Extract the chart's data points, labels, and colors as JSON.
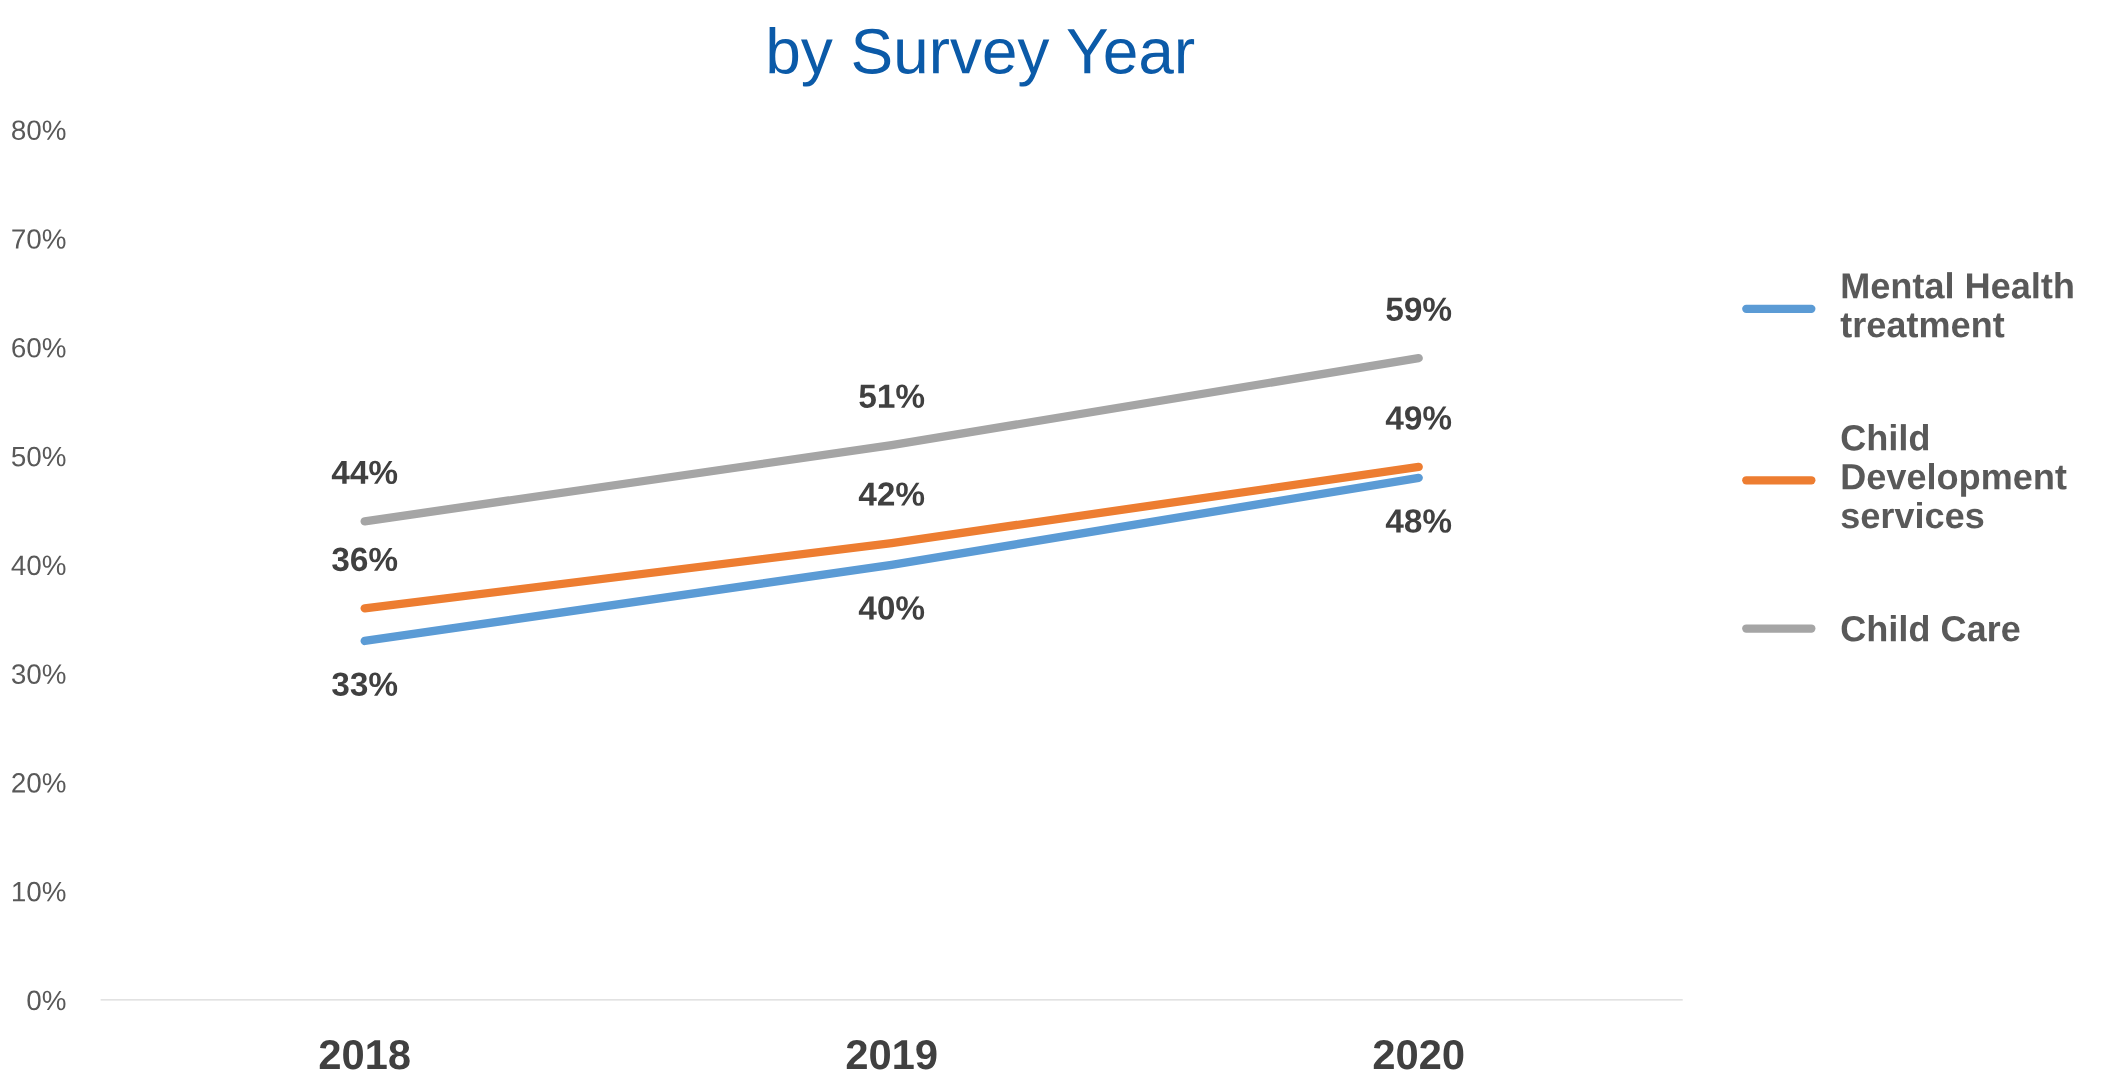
{
  "chart_data": {
    "type": "line",
    "title": "by Survey Year",
    "categories": [
      "2018",
      "2019",
      "2020"
    ],
    "series": [
      {
        "name": "Mental Health\ntreatment",
        "color": "#5b9bd5",
        "values": [
          33,
          40,
          48
        ],
        "value_labels": [
          "33%",
          "40%",
          "48%"
        ]
      },
      {
        "name": "Child\nDevelopment\nservices",
        "color": "#ed7d31",
        "values": [
          36,
          42,
          49
        ],
        "value_labels": [
          "36%",
          "42%",
          "49%"
        ]
      },
      {
        "name": "Child Care",
        "color": "#a5a5a5",
        "values": [
          44,
          51,
          59
        ],
        "value_labels": [
          "44%",
          "51%",
          "59%"
        ]
      }
    ],
    "ylim": [
      0,
      80
    ],
    "yticks": [
      {
        "value": 0,
        "label": "0%"
      },
      {
        "value": 10,
        "label": "10%"
      },
      {
        "value": 20,
        "label": "20%"
      },
      {
        "value": 30,
        "label": "30%"
      },
      {
        "value": 40,
        "label": "40%"
      },
      {
        "value": 50,
        "label": "50%"
      },
      {
        "value": 60,
        "label": "60%"
      },
      {
        "value": 70,
        "label": "70%"
      },
      {
        "value": 80,
        "label": "80%"
      }
    ],
    "grid": false,
    "legend": "right",
    "marker": "none",
    "line_style": "solid"
  }
}
